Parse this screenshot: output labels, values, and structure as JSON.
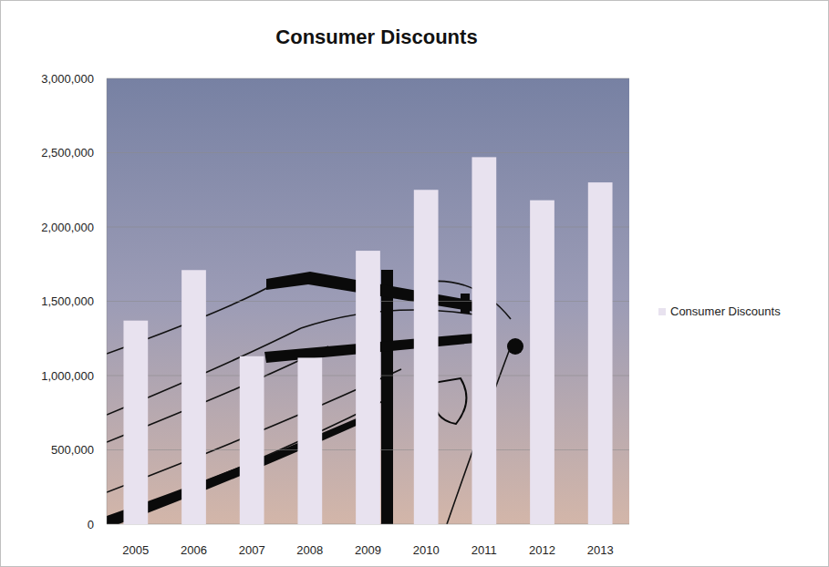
{
  "chart_data": {
    "type": "bar",
    "title": "Consumer Discounts",
    "categories": [
      "2005",
      "2006",
      "2007",
      "2008",
      "2009",
      "2010",
      "2011",
      "2012",
      "2013"
    ],
    "series": [
      {
        "name": "Consumer Discounts",
        "color": "#e8e2ef",
        "values": [
          1370000,
          1710000,
          1130000,
          1120000,
          1840000,
          2250000,
          2470000,
          2180000,
          2300000
        ]
      }
    ],
    "ylim": [
      0,
      3000000
    ],
    "yticks": [
      0,
      {
        "value": 500000,
        "label": "500,000"
      },
      {
        "value": 1000000,
        "label": "1,000,000"
      },
      {
        "value": 1500000,
        "label": "1,500,000"
      },
      {
        "value": 2000000,
        "label": "2,000,000"
      },
      {
        "value": 2500000,
        "label": "2,500,000"
      },
      {
        "value": 3000000,
        "label": "3,000,000"
      }
    ],
    "grid": true,
    "legend": "right"
  }
}
